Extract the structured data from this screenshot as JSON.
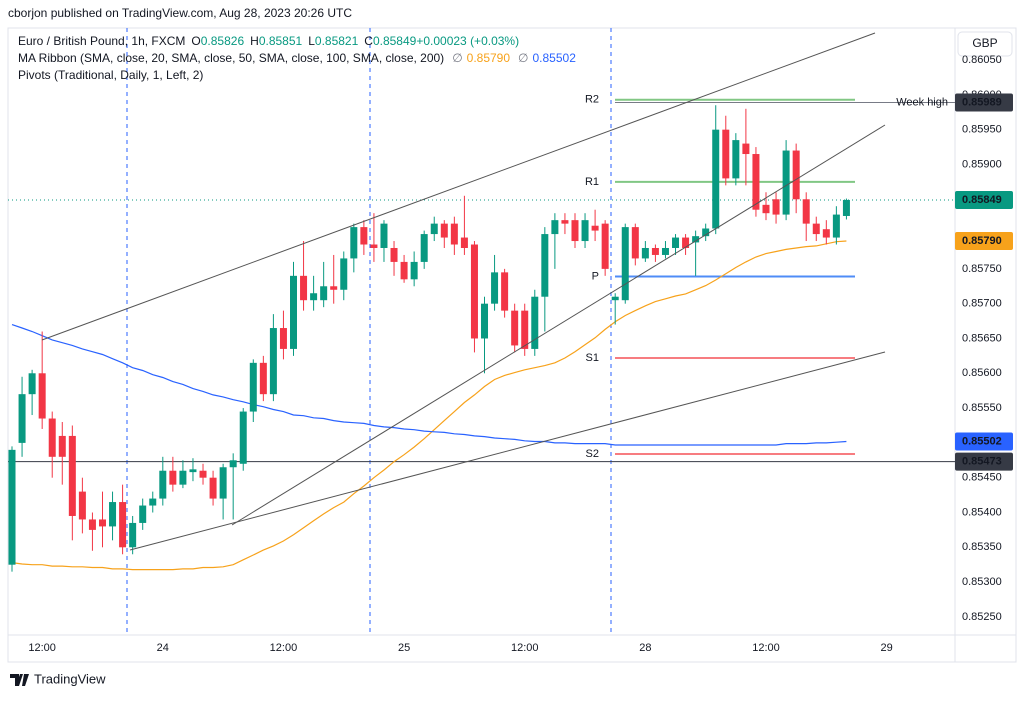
{
  "header": {
    "published": "cborjon published on TradingView.com, Aug 28, 2023 20:26 UTC",
    "currency": "GBP"
  },
  "footer": {
    "brand": "TradingView"
  },
  "chart_data": {
    "type": "candlestick",
    "title": "Euro / British Pound, 1h, FXCM",
    "ohlc_legend": [
      [
        "O",
        "0.85826"
      ],
      [
        "H",
        "0.85851"
      ],
      [
        "L",
        "0.85821"
      ],
      [
        "C",
        "0.85849"
      ],
      [
        "",
        "+0.00023 (+0.03%)"
      ]
    ],
    "up_color": "#089981",
    "down_color": "#f23645",
    "xlim": [
      -0.2,
      93.8
    ],
    "xticks": [
      {
        "value": 3,
        "label": "12:00"
      },
      {
        "value": 15,
        "label": "24"
      },
      {
        "value": 27,
        "label": "12:00"
      },
      {
        "value": 39,
        "label": "25"
      },
      {
        "value": 51,
        "label": "12:00"
      },
      {
        "value": 63,
        "label": "28"
      },
      {
        "value": 75,
        "label": "12:00"
      },
      {
        "value": 87,
        "label": "29"
      }
    ],
    "ylim": [
      0.85224,
      0.86086
    ],
    "yticks": [
      {
        "value": 0.8525,
        "label": "0.85250"
      },
      {
        "value": 0.853,
        "label": "0.85300"
      },
      {
        "value": 0.8535,
        "label": "0.85350"
      },
      {
        "value": 0.854,
        "label": "0.85400"
      },
      {
        "value": 0.8545,
        "label": "0.85450"
      },
      {
        "value": 0.8555,
        "label": "0.85550"
      },
      {
        "value": 0.856,
        "label": "0.85600"
      },
      {
        "value": 0.8565,
        "label": "0.85650"
      },
      {
        "value": 0.857,
        "label": "0.85700"
      },
      {
        "value": 0.8575,
        "label": "0.85750"
      },
      {
        "value": 0.859,
        "label": "0.85900"
      },
      {
        "value": 0.8595,
        "label": "0.85950"
      },
      {
        "value": 0.86,
        "label": "0.86000"
      },
      {
        "value": 0.8605,
        "label": "0.86050"
      }
    ],
    "open": [
      0.85325,
      0.855,
      0.8557,
      0.856,
      0.85535,
      0.8551,
      0.8551,
      0.8543,
      0.8539,
      0.8539,
      0.8538,
      0.85415,
      0.8535,
      0.85385,
      0.8541,
      0.8542,
      0.8546,
      0.8544,
      0.85458,
      0.8546,
      0.8545,
      0.8542,
      0.85465,
      0.8547,
      0.85545,
      0.85615,
      0.8557,
      0.85665,
      0.85635,
      0.8574,
      0.85705,
      0.85705,
      0.85725,
      0.8572,
      0.85765,
      0.8581,
      0.85785,
      0.8578,
      0.8578,
      0.8576,
      0.85735,
      0.8576,
      0.858,
      0.85815,
      0.85815,
      0.85795,
      0.85785,
      0.8565,
      0.857,
      0.85745,
      0.8569,
      0.8569,
      0.85635,
      0.8571,
      0.858,
      0.8582,
      0.8582,
      0.8579,
      0.85812,
      0.85815,
      0.85705,
      0.85705,
      0.8581,
      0.85765,
      0.8578,
      0.8577,
      0.8578,
      0.85795,
      0.85788,
      0.85797,
      0.85808,
      0.8595,
      0.8588,
      0.8593,
      0.85915,
      0.85842,
      0.8585,
      0.85828,
      0.8592,
      0.8585,
      0.85815,
      0.85807,
      0.85795,
      0.85826
    ],
    "high": [
      0.85495,
      0.85595,
      0.85605,
      0.8566,
      0.85545,
      0.8553,
      0.85525,
      0.8545,
      0.854,
      0.8543,
      0.8543,
      0.8544,
      0.85395,
      0.8542,
      0.8543,
      0.8548,
      0.8548,
      0.85475,
      0.85478,
      0.8547,
      0.8546,
      0.8547,
      0.85485,
      0.8555,
      0.8562,
      0.85625,
      0.85685,
      0.8569,
      0.8576,
      0.8579,
      0.8574,
      0.8576,
      0.8577,
      0.85775,
      0.85815,
      0.8582,
      0.8583,
      0.8582,
      0.8579,
      0.8577,
      0.85775,
      0.85805,
      0.85825,
      0.8582,
      0.85825,
      0.85855,
      0.8579,
      0.8571,
      0.8577,
      0.8575,
      0.857,
      0.857,
      0.8572,
      0.8581,
      0.8583,
      0.8583,
      0.8583,
      0.8583,
      0.85835,
      0.8582,
      0.85715,
      0.85815,
      0.85815,
      0.8579,
      0.85785,
      0.8579,
      0.858,
      0.858,
      0.85805,
      0.85815,
      0.85985,
      0.8597,
      0.85945,
      0.8598,
      0.85925,
      0.8586,
      0.8586,
      0.85935,
      0.8593,
      0.8586,
      0.85825,
      0.8582,
      0.8584,
      0.85851
    ],
    "low": [
      0.85315,
      0.8548,
      0.8554,
      0.8552,
      0.8545,
      0.8544,
      0.8536,
      0.8537,
      0.85345,
      0.8535,
      0.8536,
      0.8534,
      0.8534,
      0.85375,
      0.854,
      0.8541,
      0.8543,
      0.85435,
      0.85445,
      0.8544,
      0.8541,
      0.8539,
      0.8539,
      0.8546,
      0.8553,
      0.8556,
      0.8556,
      0.8562,
      0.85625,
      0.8569,
      0.8569,
      0.85695,
      0.857,
      0.85705,
      0.85745,
      0.8577,
      0.8576,
      0.8576,
      0.8574,
      0.8573,
      0.85725,
      0.8575,
      0.8579,
      0.8578,
      0.8577,
      0.8577,
      0.8563,
      0.856,
      0.8569,
      0.8568,
      0.8563,
      0.85625,
      0.85625,
      0.8566,
      0.8575,
      0.858,
      0.8578,
      0.8578,
      0.8579,
      0.8574,
      0.8567,
      0.857,
      0.85755,
      0.8576,
      0.8576,
      0.85765,
      0.8577,
      0.8577,
      0.8574,
      0.8579,
      0.858,
      0.8587,
      0.8587,
      0.8587,
      0.85825,
      0.8582,
      0.85815,
      0.8582,
      0.8583,
      0.8579,
      0.8579,
      0.85785,
      0.85785,
      0.85821
    ],
    "close": [
      0.8549,
      0.8557,
      0.856,
      0.85535,
      0.8548,
      0.8548,
      0.85395,
      0.8539,
      0.85375,
      0.8538,
      0.85415,
      0.8535,
      0.85385,
      0.8541,
      0.8542,
      0.8546,
      0.8544,
      0.8546,
      0.85462,
      0.8545,
      0.8542,
      0.85465,
      0.85475,
      0.85545,
      0.85615,
      0.8557,
      0.85665,
      0.85635,
      0.8574,
      0.85705,
      0.85715,
      0.85725,
      0.8572,
      0.85765,
      0.8581,
      0.85785,
      0.8578,
      0.85815,
      0.8576,
      0.85735,
      0.8576,
      0.858,
      0.85815,
      0.85795,
      0.85785,
      0.8578,
      0.8565,
      0.857,
      0.85745,
      0.8569,
      0.8564,
      0.85635,
      0.8571,
      0.858,
      0.8582,
      0.85815,
      0.8579,
      0.8582,
      0.85805,
      0.8575,
      0.8571,
      0.8581,
      0.85765,
      0.8578,
      0.8577,
      0.8578,
      0.85795,
      0.8578,
      0.85797,
      0.85808,
      0.8595,
      0.8588,
      0.85935,
      0.85915,
      0.85835,
      0.8583,
      0.85828,
      0.8592,
      0.8585,
      0.85815,
      0.858,
      0.85795,
      0.85828,
      0.85849
    ],
    "ma_ribbon": {
      "title": "MA Ribbon (SMA, close, 20, SMA, close, 50, SMA, close, 100, SMA, close, 200)",
      "series": [
        {
          "color": "#f7a21b",
          "value_label": "0.85790",
          "values": [
            0.85328,
            0.85326,
            0.85325,
            0.85325,
            0.85323,
            0.85323,
            0.85322,
            0.85322,
            0.85321,
            0.85321,
            0.85319,
            0.85319,
            0.85318,
            0.85318,
            0.85318,
            0.85318,
            0.85318,
            0.85319,
            0.85319,
            0.85321,
            0.85321,
            0.85322,
            0.85325,
            0.85332,
            0.85339,
            0.85346,
            0.85352,
            0.85359,
            0.85368,
            0.85378,
            0.85388,
            0.85398,
            0.85407,
            0.85415,
            0.85427,
            0.85438,
            0.8545,
            0.85461,
            0.85473,
            0.85483,
            0.85494,
            0.85506,
            0.85519,
            0.85532,
            0.85545,
            0.85558,
            0.85569,
            0.85581,
            0.85591,
            0.85597,
            0.85601,
            0.85605,
            0.85608,
            0.85611,
            0.85615,
            0.85622,
            0.85631,
            0.85641,
            0.85651,
            0.85663,
            0.85674,
            0.85683,
            0.8569,
            0.85697,
            0.85703,
            0.85707,
            0.85711,
            0.85714,
            0.8572,
            0.85726,
            0.85734,
            0.85743,
            0.85752,
            0.8576,
            0.85767,
            0.85772,
            0.85775,
            0.85778,
            0.8578,
            0.85782,
            0.85783,
            0.85786,
            0.85789,
            0.8579
          ]
        },
        {
          "color": "#2962ff",
          "value_label": "0.85502",
          "values": [
            0.8567,
            0.85665,
            0.8566,
            0.85654,
            0.85648,
            0.85644,
            0.8564,
            0.85635,
            0.85631,
            0.85627,
            0.85621,
            0.85615,
            0.85608,
            0.85604,
            0.85598,
            0.85594,
            0.85588,
            0.85584,
            0.85578,
            0.85574,
            0.85569,
            0.85566,
            0.85562,
            0.85559,
            0.85555,
            0.85552,
            0.85548,
            0.85545,
            0.8554,
            0.85539,
            0.85536,
            0.85535,
            0.85532,
            0.8553,
            0.85529,
            0.85528,
            0.85525,
            0.85523,
            0.85522,
            0.8552,
            0.85519,
            0.85517,
            0.85516,
            0.85515,
            0.85513,
            0.85512,
            0.8551,
            0.85509,
            0.85507,
            0.85506,
            0.85505,
            0.85503,
            0.85502,
            0.85502,
            0.855,
            0.855,
            0.85499,
            0.85499,
            0.85499,
            0.85499,
            0.85497,
            0.85497,
            0.85497,
            0.85497,
            0.85497,
            0.85497,
            0.85497,
            0.85497,
            0.85497,
            0.85497,
            0.85497,
            0.85497,
            0.85497,
            0.85497,
            0.85497,
            0.85497,
            0.85497,
            0.85499,
            0.85499,
            0.85499,
            0.855,
            0.855,
            0.85501,
            0.85502
          ]
        }
      ]
    },
    "pivots": {
      "title": "Pivots (Traditional, Daily, 1, Left, 2)",
      "levels": [
        {
          "name": "R2",
          "value": 0.85993,
          "color": "#81c784"
        },
        {
          "name": "R1",
          "value": 0.85875,
          "color": "#81c784"
        },
        {
          "name": "P",
          "value": 0.85739,
          "color": "#4f8cf7"
        },
        {
          "name": "S1",
          "value": 0.85622,
          "color": "#f77c80"
        },
        {
          "name": "S2",
          "value": 0.85484,
          "color": "#f77c80"
        }
      ]
    },
    "week_high": {
      "label": "Week high",
      "value": 0.85989
    },
    "price_tags": [
      {
        "value": 0.85989,
        "color": "#363a45",
        "text_color": "#ffffff"
      },
      {
        "value": 0.85849,
        "color": "#089981",
        "text_color": "#ffffff",
        "line": "dotted"
      },
      {
        "value": 0.8579,
        "label": "0.85790",
        "color": "#f7a21b",
        "text_color": "#131722"
      },
      {
        "value": 0.85502,
        "color": "#2962ff",
        "text_color": "#ffffff"
      },
      {
        "value": 0.85473,
        "color": "#363a45",
        "text_color": "#ffffff",
        "line": "solid"
      }
    ]
  }
}
